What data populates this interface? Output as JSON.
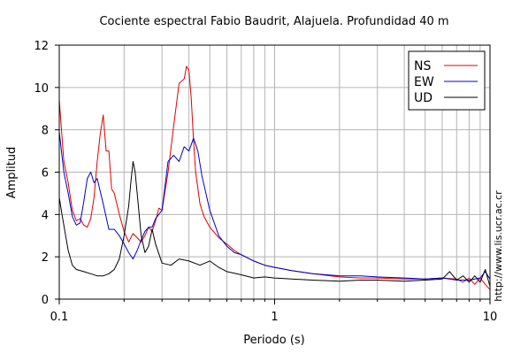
{
  "chart_data": {
    "type": "line",
    "title": "Cociente espectral Fabio Baudrit, Alajuela. Profundidad 40 m",
    "xlabel": "Periodo (s)",
    "ylabel": "Amplitud",
    "xscale": "log",
    "xlim": [
      0.1,
      10
    ],
    "ylim": [
      0,
      12
    ],
    "xticks": [
      0.1,
      1,
      10
    ],
    "xtick_labels": [
      "0.1",
      "1",
      "10"
    ],
    "yticks": [
      0,
      2,
      4,
      6,
      8,
      10,
      12
    ],
    "ytick_labels": [
      "0",
      "2",
      "4",
      "6",
      "8",
      "10",
      "12"
    ],
    "grid": true,
    "legend_position": "top-right",
    "credit": "http://www.lis.ucr.ac.cr",
    "series": [
      {
        "name": "NS",
        "color": "#e00000",
        "x": [
          0.1,
          0.105,
          0.11,
          0.115,
          0.12,
          0.125,
          0.13,
          0.135,
          0.14,
          0.145,
          0.15,
          0.155,
          0.16,
          0.165,
          0.17,
          0.175,
          0.18,
          0.19,
          0.2,
          0.21,
          0.22,
          0.23,
          0.24,
          0.25,
          0.26,
          0.27,
          0.28,
          0.29,
          0.3,
          0.32,
          0.34,
          0.36,
          0.38,
          0.39,
          0.4,
          0.41,
          0.42,
          0.43,
          0.45,
          0.47,
          0.5,
          0.55,
          0.6,
          0.65,
          0.7,
          0.8,
          0.9,
          1.0,
          1.2,
          1.5,
          2.0,
          2.5,
          3.0,
          4.0,
          5.0,
          6.0,
          7.0,
          7.5,
          8.0,
          8.5,
          9.0,
          9.5,
          10.0
        ],
        "y": [
          9.4,
          6.5,
          5.5,
          4.2,
          3.7,
          3.8,
          3.5,
          3.4,
          3.8,
          4.8,
          6.5,
          7.8,
          8.7,
          7.0,
          7.0,
          5.2,
          5.0,
          4.0,
          3.2,
          2.7,
          3.1,
          2.9,
          2.7,
          3.0,
          3.4,
          3.2,
          3.7,
          4.3,
          4.2,
          6.0,
          8.2,
          10.2,
          10.4,
          11.0,
          10.8,
          9.5,
          7.5,
          6.0,
          4.5,
          3.9,
          3.4,
          2.9,
          2.6,
          2.3,
          2.1,
          1.8,
          1.6,
          1.5,
          1.35,
          1.2,
          1.05,
          1.0,
          1.0,
          0.95,
          0.95,
          1.0,
          0.95,
          0.8,
          1.0,
          0.7,
          1.0,
          0.7,
          0.45
        ]
      },
      {
        "name": "EW",
        "color": "#0000c8",
        "x": [
          0.1,
          0.105,
          0.11,
          0.115,
          0.12,
          0.125,
          0.13,
          0.135,
          0.14,
          0.145,
          0.15,
          0.16,
          0.17,
          0.18,
          0.19,
          0.2,
          0.21,
          0.22,
          0.23,
          0.24,
          0.25,
          0.26,
          0.27,
          0.28,
          0.3,
          0.32,
          0.34,
          0.36,
          0.38,
          0.4,
          0.42,
          0.44,
          0.46,
          0.5,
          0.55,
          0.6,
          0.65,
          0.7,
          0.8,
          0.9,
          1.0,
          1.2,
          1.5,
          2.0,
          2.5,
          3.0,
          4.0,
          5.0,
          6.0,
          7.0,
          8.0,
          9.0,
          9.5,
          10.0
        ],
        "y": [
          7.9,
          6.0,
          5.0,
          3.9,
          3.5,
          3.6,
          4.6,
          5.7,
          6.0,
          5.5,
          5.7,
          4.5,
          3.3,
          3.3,
          3.0,
          2.6,
          2.2,
          1.9,
          2.3,
          2.8,
          3.2,
          3.4,
          3.4,
          3.8,
          4.2,
          6.5,
          6.8,
          6.5,
          7.2,
          7.0,
          7.6,
          7.0,
          5.8,
          4.2,
          3.0,
          2.5,
          2.2,
          2.1,
          1.8,
          1.6,
          1.5,
          1.35,
          1.2,
          1.1,
          1.1,
          1.05,
          1.0,
          0.95,
          1.0,
          0.9,
          0.9,
          1.0,
          1.3,
          0.95
        ]
      },
      {
        "name": "UD",
        "color": "#000000",
        "x": [
          0.1,
          0.103,
          0.107,
          0.11,
          0.115,
          0.12,
          0.13,
          0.14,
          0.15,
          0.16,
          0.17,
          0.18,
          0.19,
          0.2,
          0.21,
          0.215,
          0.22,
          0.225,
          0.23,
          0.24,
          0.25,
          0.26,
          0.27,
          0.28,
          0.3,
          0.33,
          0.36,
          0.4,
          0.45,
          0.5,
          0.55,
          0.6,
          0.7,
          0.8,
          0.9,
          1.0,
          1.2,
          1.5,
          2.0,
          2.5,
          3.0,
          4.0,
          5.0,
          6.0,
          6.5,
          7.0,
          7.5,
          8.0,
          8.5,
          9.0,
          9.5,
          10.0
        ],
        "y": [
          4.8,
          4.0,
          3.0,
          2.3,
          1.6,
          1.4,
          1.3,
          1.2,
          1.1,
          1.1,
          1.2,
          1.4,
          1.9,
          3.0,
          4.4,
          5.5,
          6.5,
          6.0,
          5.0,
          3.0,
          2.2,
          2.5,
          3.3,
          2.6,
          1.7,
          1.6,
          1.9,
          1.8,
          1.6,
          1.8,
          1.5,
          1.3,
          1.15,
          1.0,
          1.05,
          1.0,
          0.95,
          0.9,
          0.85,
          0.9,
          0.9,
          0.85,
          0.9,
          0.95,
          1.3,
          0.9,
          1.1,
          0.8,
          1.1,
          0.8,
          1.4,
          0.6
        ]
      }
    ]
  }
}
